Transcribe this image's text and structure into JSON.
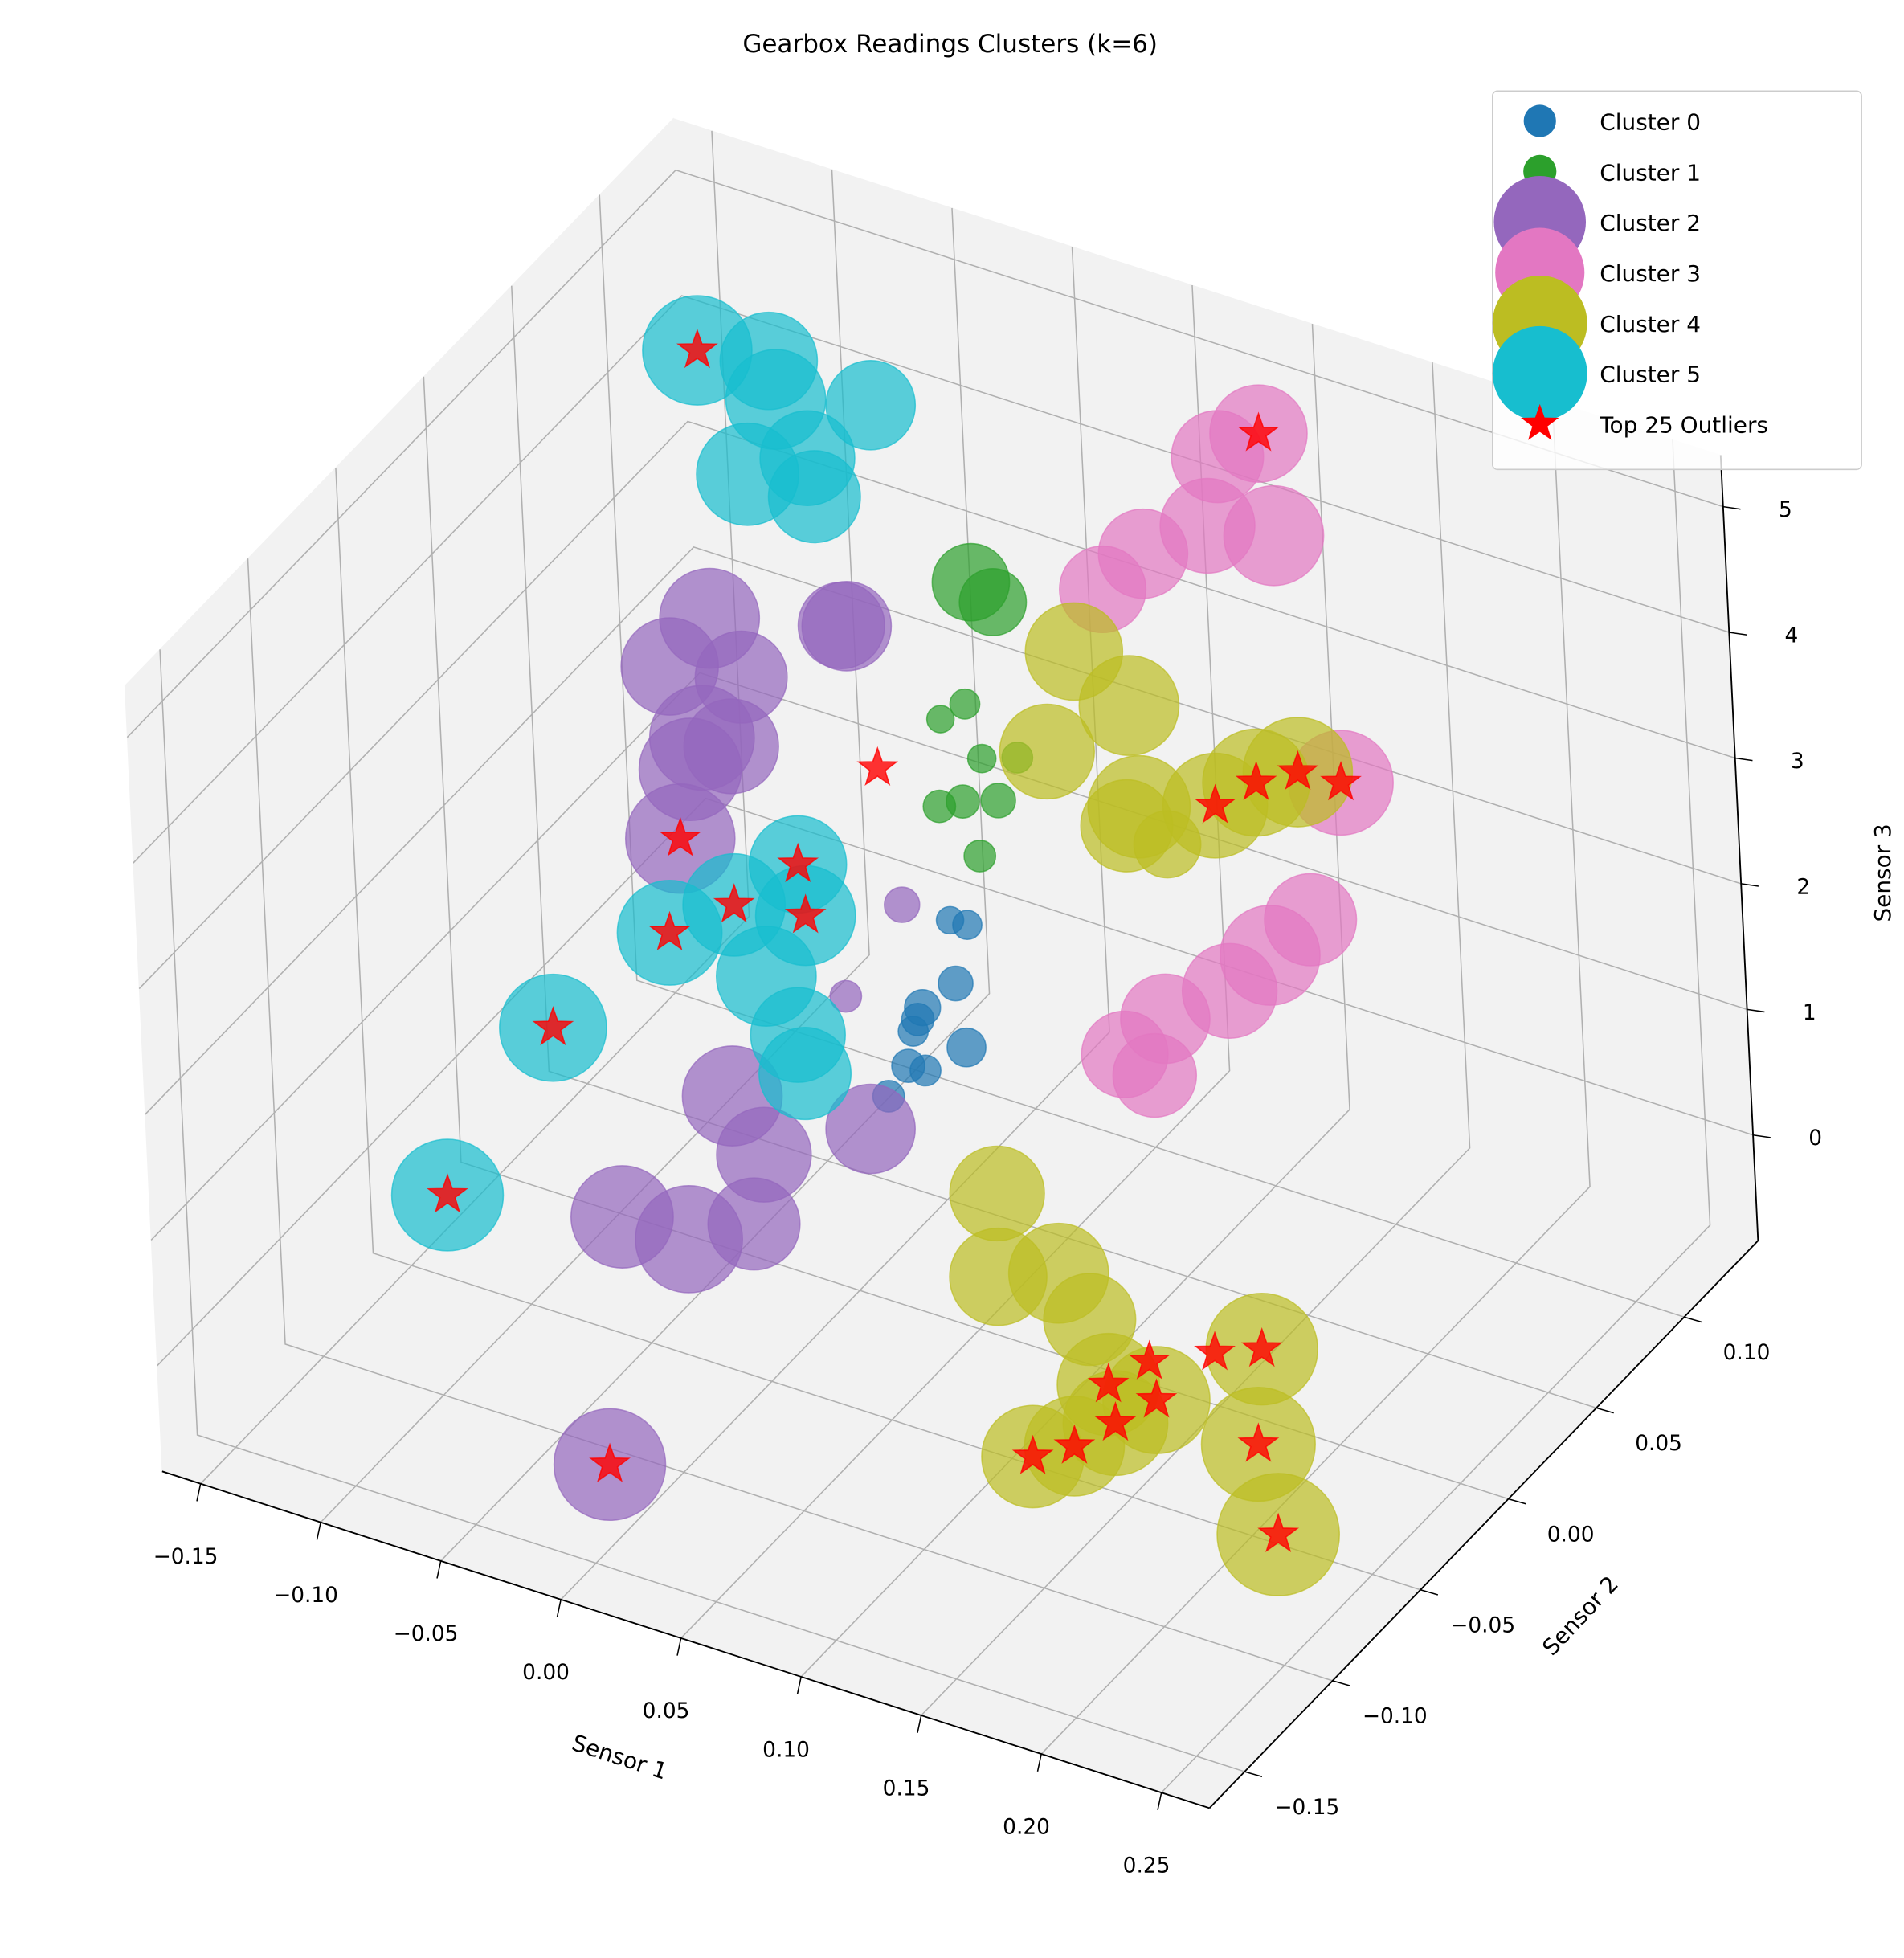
{
  "chart_data": {
    "type": "scatter3d",
    "title": "Gearbox Readings Clusters (k=6)",
    "x_label": "Sensor 1",
    "y_label": "Sensor 2",
    "z_label": "Sensor 3",
    "xlim": [
      -0.166,
      0.27
    ],
    "ylim": [
      -0.17,
      0.142
    ],
    "zlim": [
      -0.84,
      5.41
    ],
    "xticks": [
      {
        "value": -0.15,
        "label": "−0.15"
      },
      {
        "value": -0.1,
        "label": "−0.10"
      },
      {
        "value": -0.05,
        "label": "−0.05"
      },
      {
        "value": 0,
        "label": "0.00"
      },
      {
        "value": 0.05,
        "label": "0.05"
      },
      {
        "value": 0.1,
        "label": "0.10"
      },
      {
        "value": 0.15,
        "label": "0.15"
      },
      {
        "value": 0.2,
        "label": "0.20"
      },
      {
        "value": 0.25,
        "label": "0.25"
      }
    ],
    "yticks": [
      {
        "value": -0.15,
        "label": "−0.15"
      },
      {
        "value": -0.1,
        "label": "−0.10"
      },
      {
        "value": -0.05,
        "label": "−0.05"
      },
      {
        "value": 0,
        "label": "0.00"
      },
      {
        "value": 0.05,
        "label": "0.05"
      },
      {
        "value": 0.1,
        "label": "0.10"
      }
    ],
    "zticks": [
      0,
      1,
      2,
      3,
      4,
      5
    ],
    "grid": true,
    "alpha": 0.7,
    "legend": "upper right",
    "series": [
      {
        "name": "Cluster 0",
        "color": "#1f77b4",
        "marker": "circle",
        "x": [
          0.03,
          0.02,
          0.04,
          0.03,
          0.05,
          0.02,
          0.035,
          0.045,
          0.025,
          0.04
        ],
        "y": [
          0.0,
          0.01,
          -0.01,
          0.02,
          0.0,
          -0.005,
          0.015,
          0.01,
          0.0,
          -0.01
        ],
        "z": [
          1.5,
          1.2,
          1.8,
          2.0,
          1.4,
          0.9,
          1.6,
          2.2,
          1.1,
          1.3
        ],
        "sizes": [
          210,
          180,
          260,
          150,
          300,
          200,
          240,
          170,
          220,
          190
        ]
      },
      {
        "name": "Cluster 1",
        "color": "#2ca02c",
        "marker": "circle",
        "x": [
          0.03,
          0.035,
          0.04,
          0.025,
          0.045,
          0.03,
          0.05,
          0.02,
          0.035,
          0.03
        ],
        "y": [
          0.03,
          0.035,
          0.025,
          0.04,
          0.03,
          0.02,
          0.035,
          0.03,
          0.045,
          0.04
        ],
        "z": [
          2.8,
          3.1,
          2.5,
          3.4,
          2.9,
          3.6,
          3.2,
          2.7,
          4.2,
          4.4
        ],
        "sizes": [
          220,
          160,
          200,
          180,
          240,
          150,
          190,
          210,
          900,
          1200
        ]
      },
      {
        "name": "Cluster 2",
        "color": "#9467bd",
        "marker": "circle",
        "x": [
          -0.03,
          -0.05,
          -0.02,
          0.0,
          -0.04,
          -0.01,
          -0.06,
          -0.03,
          -0.02,
          -0.03,
          -0.05,
          -0.02,
          0.0,
          -0.04,
          -0.06,
          0.0,
          0.01,
          0.0
        ],
        "y": [
          -0.01,
          0.0,
          -0.03,
          0.01,
          -0.02,
          0.02,
          -0.01,
          -0.04,
          -0.06,
          -0.01,
          0.0,
          -0.03,
          0.01,
          -0.04,
          -0.05,
          -0.14,
          0.02,
          0.0
        ],
        "z": [
          4.0,
          4.2,
          3.8,
          4.3,
          3.6,
          4.1,
          3.9,
          3.7,
          3.5,
          0.2,
          0.4,
          0.0,
          0.3,
          -0.1,
          0.1,
          -0.2,
          2.0,
          1.5
        ],
        "sizes": [
          1700,
          2000,
          1800,
          1600,
          2200,
          1500,
          1900,
          2100,
          2400,
          1800,
          2000,
          1700,
          1600,
          2300,
          2100,
          2500,
          250,
          200
        ]
      },
      {
        "name": "Cluster 3",
        "color": "#e377c2",
        "marker": "circle",
        "x": [
          0.08,
          0.1,
          0.07,
          0.12,
          0.09,
          0.1,
          0.08,
          0.1,
          0.07,
          0.11,
          0.12,
          0.09,
          0.12
        ],
        "y": [
          0.07,
          0.08,
          0.06,
          0.09,
          0.1,
          0.11,
          0.07,
          0.08,
          0.06,
          0.09,
          0.1,
          0.05,
          0.12
        ],
        "z": [
          4.5,
          4.7,
          4.3,
          4.6,
          4.9,
          5.0,
          0.8,
          1.0,
          0.6,
          1.2,
          1.4,
          0.7,
          2.2
        ],
        "sizes": [
          1600,
          1800,
          1500,
          2000,
          1700,
          1900,
          1600,
          1800,
          1500,
          2000,
          1700,
          1400,
          2200
        ]
      },
      {
        "name": "Cluster 4",
        "color": "#bcbd22",
        "marker": "circle",
        "x": [
          0.09,
          0.11,
          0.13,
          0.08,
          0.12,
          0.16,
          0.17,
          0.18,
          0.06,
          0.1,
          0.12,
          0.09,
          0.15,
          0.16,
          0.15,
          0.17,
          0.14,
          0.2,
          0.22,
          0.25,
          0.1
        ],
        "y": [
          0.0,
          0.02,
          -0.01,
          0.03,
          0.01,
          0.0,
          0.01,
          0.02,
          0.0,
          -0.02,
          -0.03,
          -0.04,
          -0.06,
          -0.07,
          -0.08,
          -0.06,
          -0.09,
          -0.04,
          -0.07,
          -0.1,
          0.05
        ],
        "z": [
          4.0,
          4.2,
          3.8,
          4.3,
          3.6,
          4.0,
          4.1,
          4.1,
          0.3,
          0.2,
          0.1,
          0.4,
          0.2,
          0.1,
          0.0,
          0.2,
          0.0,
          0.5,
          0.3,
          0.2,
          2.6
        ],
        "sizes": [
          1800,
          2000,
          1700,
          1900,
          2100,
          2200,
          2300,
          2400,
          1800,
          2000,
          1700,
          1900,
          2100,
          2200,
          2000,
          2300,
          2100,
          2500,
          2600,
          3000,
          900
        ]
      },
      {
        "name": "Cluster 5",
        "color": "#17becf",
        "marker": "circle",
        "x": [
          -0.06,
          -0.08,
          -0.05,
          -0.09,
          -0.07,
          -0.04,
          -0.12,
          -0.06,
          -0.08,
          -0.05,
          -0.12,
          -0.14,
          -0.1,
          -0.08,
          -0.07,
          -0.11
        ],
        "y": [
          0.07,
          0.08,
          0.06,
          0.09,
          0.05,
          0.08,
          0.09,
          0.05,
          0.06,
          0.04,
          0.06,
          0.02,
          0.07,
          0.08,
          0.07,
          -0.08
        ],
        "z": [
          4.4,
          4.6,
          4.3,
          4.7,
          4.5,
          4.8,
          4.6,
          0.1,
          0.3,
          0.0,
          0.4,
          0.1,
          0.6,
          0.9,
          0.7,
          0.4
        ],
        "sizes": [
          1800,
          2000,
          1700,
          1900,
          2100,
          1600,
          2400,
          1800,
          2000,
          1700,
          2200,
          2300,
          2100,
          1900,
          2000,
          2500
        ]
      },
      {
        "name": "Top 25 Outliers",
        "color": "#ff0000",
        "marker": "star",
        "size": 320,
        "x": [
          -0.12,
          0.1,
          -0.02,
          0.16,
          0.17,
          0.18,
          -0.12,
          -0.14,
          -0.1,
          -0.08,
          -0.07,
          -0.06,
          0.12,
          0.15,
          0.16,
          0.15,
          0.17,
          0.16,
          0.18,
          0.14,
          0.2,
          0.22,
          0.25,
          0.0,
          -0.11
        ],
        "y": [
          0.09,
          0.11,
          -0.06,
          0.0,
          0.01,
          0.02,
          0.06,
          0.02,
          0.07,
          0.08,
          0.07,
          0.1,
          0.12,
          -0.06,
          -0.07,
          -0.08,
          -0.06,
          -0.05,
          -0.04,
          -0.09,
          -0.04,
          -0.07,
          -0.1,
          -0.14,
          -0.08
        ],
        "z": [
          4.6,
          5.0,
          3.5,
          4.0,
          4.1,
          4.1,
          0.4,
          0.1,
          0.6,
          0.9,
          0.7,
          1.5,
          2.2,
          0.2,
          0.1,
          0.0,
          0.2,
          0.3,
          0.35,
          0.0,
          0.5,
          0.3,
          0.2,
          -0.2,
          0.4
        ]
      }
    ]
  }
}
